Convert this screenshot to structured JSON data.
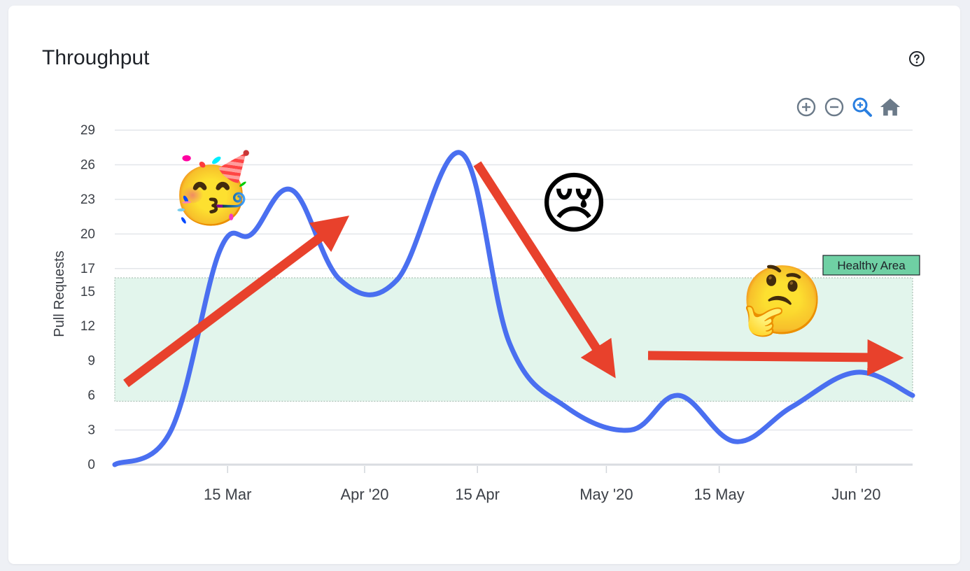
{
  "card": {
    "title": "Throughput",
    "help_icon": "question-circle-icon"
  },
  "toolbar": {
    "icons": [
      "zoom-in-icon",
      "zoom-out-icon",
      "zoom-select-icon",
      "reset-home-icon"
    ],
    "active_color": "#2a7fe0",
    "color": "#6b7a89"
  },
  "chart_data": {
    "type": "area",
    "title": "Throughput",
    "xlabel": "",
    "ylabel": "Pull Requests",
    "ylim": [
      0,
      29
    ],
    "yticks": [
      0,
      3,
      6,
      9,
      12,
      15,
      17,
      20,
      23,
      26,
      29
    ],
    "ytick_labels": [
      "0",
      "3",
      "6",
      "9",
      "12",
      "15",
      "17",
      "20",
      "23",
      "26",
      "29"
    ],
    "xlim": [
      "2020-03-01",
      "2020-06-08"
    ],
    "xticks": [
      {
        "date": "2020-03-15",
        "label": "15 Mar"
      },
      {
        "date": "2020-04-01",
        "label": "Apr '20"
      },
      {
        "date": "2020-04-15",
        "label": "15 Apr"
      },
      {
        "date": "2020-05-01",
        "label": "May '20"
      },
      {
        "date": "2020-05-15",
        "label": "15 May"
      },
      {
        "date": "2020-06-01",
        "label": "Jun '20"
      }
    ],
    "grid": true,
    "series": [
      {
        "color": "#4a6ff0",
        "x": [
          "2020-03-01",
          "2020-03-08",
          "2020-03-14",
          "2020-03-18",
          "2020-03-23",
          "2020-03-29",
          "2020-04-05",
          "2020-04-13",
          "2020-04-19",
          "2020-04-26",
          "2020-05-04",
          "2020-05-10",
          "2020-05-17",
          "2020-05-24",
          "2020-06-01",
          "2020-06-08"
        ],
        "y": [
          0,
          3,
          18.5,
          20,
          23.8,
          16,
          16,
          27,
          10.5,
          5,
          3,
          6,
          2,
          5,
          8,
          6
        ]
      }
    ],
    "band": {
      "label": "Healthy Area",
      "from": 5.5,
      "to": 16.2,
      "fill": "#e2f5ec",
      "label_bg": "#6fd0a4"
    },
    "annotations": [
      {
        "emoji": "🥳",
        "meaning": "celebration"
      },
      {
        "emoji": "😢",
        "meaning": "sad"
      },
      {
        "emoji": "🤔",
        "meaning": "thinking"
      }
    ],
    "arrow_color": "#e8412c"
  }
}
